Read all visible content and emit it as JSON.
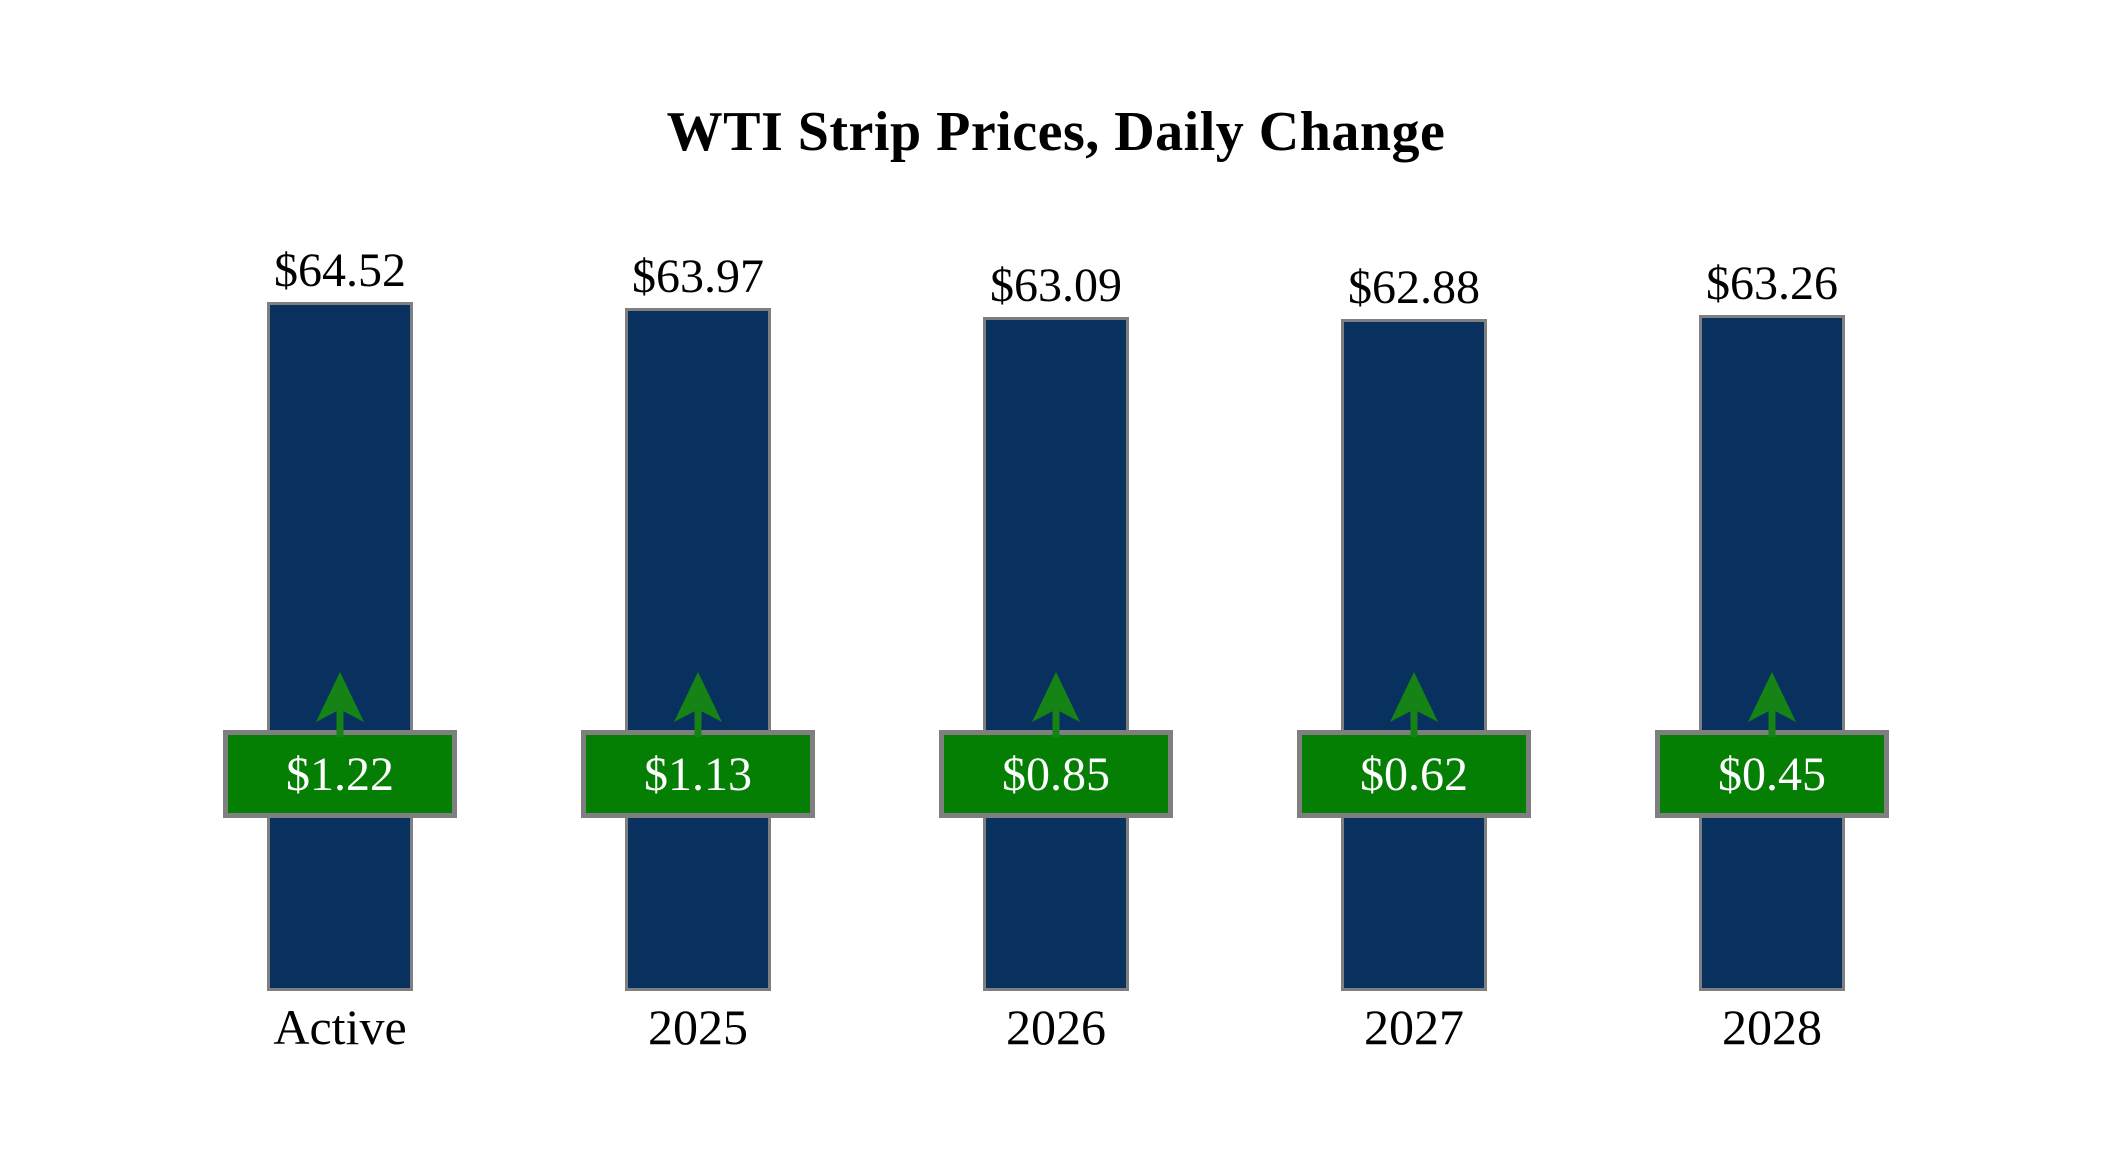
{
  "title": "WTI Strip Prices, Daily Change",
  "chart_data": {
    "type": "bar",
    "title": "WTI Strip Prices, Daily Change",
    "xlabel": "",
    "ylabel": "",
    "categories": [
      "Active",
      "2025",
      "2026",
      "2027",
      "2028"
    ],
    "series": [
      {
        "name": "strip_price_usd",
        "values": [
          64.52,
          63.97,
          63.09,
          62.88,
          63.26
        ]
      },
      {
        "name": "daily_change_usd",
        "values": [
          1.22,
          1.13,
          0.85,
          0.62,
          0.45
        ]
      }
    ],
    "bars": [
      {
        "category": "Active",
        "price": 64.52,
        "price_label": "$64.52",
        "change": 1.22,
        "change_label": "$1.22",
        "direction": "up"
      },
      {
        "category": "2025",
        "price": 63.97,
        "price_label": "$63.97",
        "change": 1.13,
        "change_label": "$1.13",
        "direction": "up"
      },
      {
        "category": "2026",
        "price": 63.09,
        "price_label": "$63.09",
        "change": 0.85,
        "change_label": "$0.85",
        "direction": "up"
      },
      {
        "category": "2027",
        "price": 62.88,
        "price_label": "$62.88",
        "change": 0.62,
        "change_label": "$0.62",
        "direction": "up"
      },
      {
        "category": "2028",
        "price": 63.26,
        "price_label": "$63.26",
        "change": 0.45,
        "change_label": "$0.45",
        "direction": "up"
      }
    ],
    "ylim": [
      0,
      64.52
    ],
    "grid": false,
    "legend": false,
    "colors": {
      "background": "#FFFFFF",
      "bar_fill": "#083160",
      "bar_border": "#7F7F7F",
      "badge_fill": "#047F04",
      "badge_border": "#7F7F7F",
      "badge_text": "#FFFFFF",
      "arrow_fill": "#168316",
      "label_text": "#000000"
    }
  }
}
